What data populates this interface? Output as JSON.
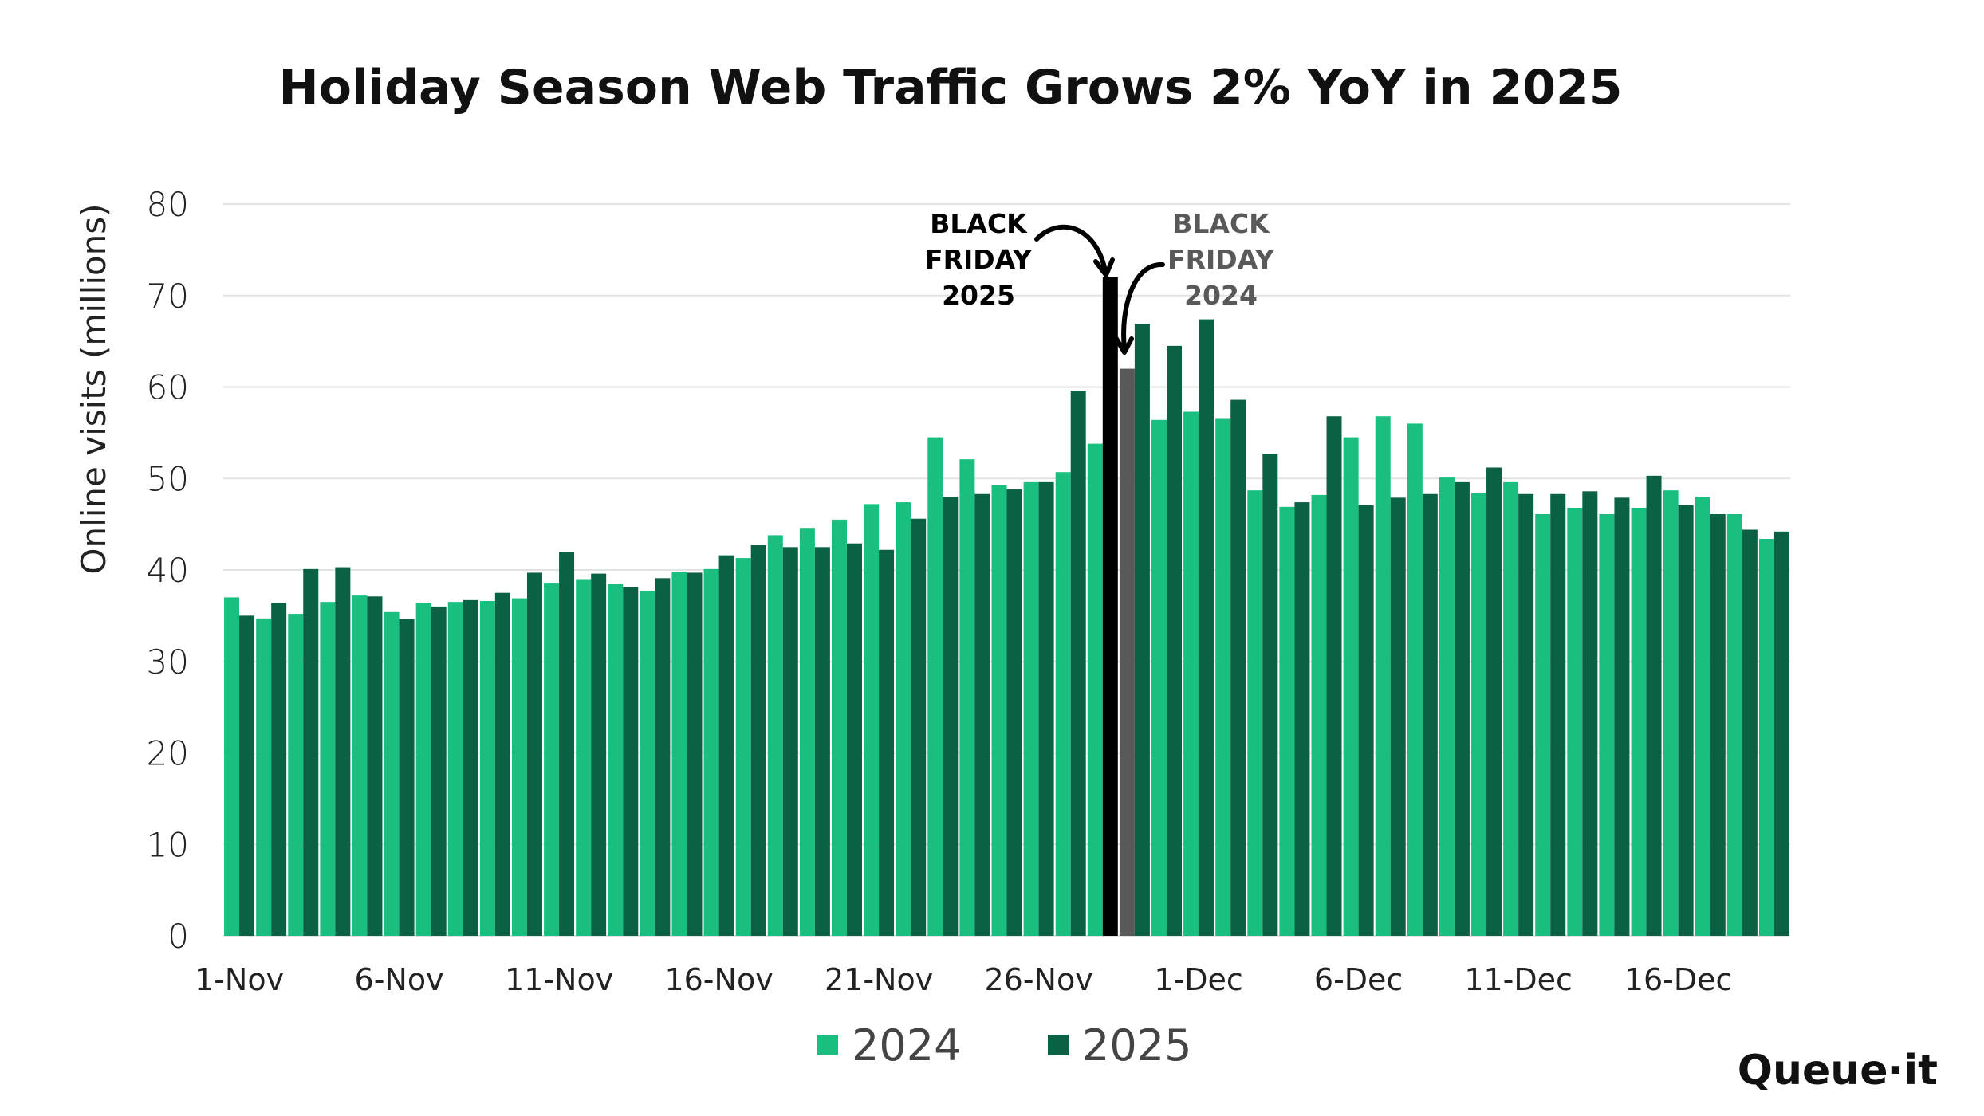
{
  "chart_data": {
    "type": "bar",
    "title": "Holiday Season Web Traffic Grows 2% YoY in 2025",
    "xlabel": "",
    "ylabel": "Online visits (millions)",
    "ylim": [
      0,
      80
    ],
    "yticks": [
      0,
      10,
      20,
      30,
      40,
      50,
      60,
      70,
      80
    ],
    "grid": true,
    "legend_position": "bottom",
    "categories": [
      "1-Nov",
      "2-Nov",
      "3-Nov",
      "4-Nov",
      "5-Nov",
      "6-Nov",
      "7-Nov",
      "8-Nov",
      "9-Nov",
      "10-Nov",
      "11-Nov",
      "12-Nov",
      "13-Nov",
      "14-Nov",
      "15-Nov",
      "16-Nov",
      "17-Nov",
      "18-Nov",
      "19-Nov",
      "20-Nov",
      "21-Nov",
      "22-Nov",
      "23-Nov",
      "24-Nov",
      "25-Nov",
      "26-Nov",
      "27-Nov",
      "28-Nov",
      "29-Nov",
      "30-Nov",
      "1-Dec",
      "2-Dec",
      "3-Dec",
      "4-Dec",
      "5-Dec",
      "6-Dec",
      "7-Dec",
      "8-Dec",
      "9-Dec",
      "10-Dec",
      "11-Dec",
      "12-Dec",
      "13-Dec",
      "14-Dec",
      "15-Dec",
      "16-Dec",
      "17-Dec",
      "18-Dec",
      "19-Dec"
    ],
    "x_tick_labels": [
      "1-Nov",
      "6-Nov",
      "11-Nov",
      "16-Nov",
      "21-Nov",
      "26-Nov",
      "1-Dec",
      "6-Dec",
      "11-Dec",
      "16-Dec"
    ],
    "series": [
      {
        "name": "2024",
        "color": "#1ABF7F",
        "values": [
          37,
          34.7,
          35.2,
          36.5,
          37.2,
          35.4,
          36.4,
          36.5,
          36.6,
          36.9,
          38.6,
          39,
          38.5,
          37.7,
          39.8,
          40.1,
          41.3,
          43.8,
          44.6,
          45.5,
          47.2,
          47.4,
          54.5,
          52.1,
          49.3,
          49.6,
          50.7,
          53.8,
          62,
          56.4,
          57.3,
          56.6,
          48.7,
          46.9,
          48.2,
          54.5,
          56.8,
          56,
          50.1,
          48.4,
          49.6,
          46.1,
          46.8,
          46.1,
          46.8,
          48.7,
          48,
          46.1,
          43.4
        ]
      },
      {
        "name": "2025",
        "color": "#0B6144",
        "values": [
          35,
          36.4,
          40.1,
          40.3,
          37.1,
          34.6,
          36,
          36.7,
          37.5,
          39.7,
          42,
          39.6,
          38.1,
          39.1,
          39.7,
          41.6,
          42.7,
          42.5,
          42.5,
          42.9,
          42.2,
          45.6,
          48,
          48.3,
          48.8,
          49.6,
          59.6,
          72,
          66.9,
          64.5,
          67.4,
          58.6,
          52.7,
          47.4,
          56.8,
          47.1,
          47.9,
          48.3,
          49.6,
          51.2,
          48.3,
          48.3,
          48.6,
          47.9,
          50.3,
          47.1,
          46.1,
          44.4,
          44.2
        ]
      }
    ],
    "highlights": [
      {
        "series": "2025",
        "category": "28-Nov",
        "color": "#000000"
      },
      {
        "series": "2024",
        "category": "29-Nov",
        "color": "#595959"
      }
    ],
    "annotations": [
      {
        "lines": [
          "BLACK",
          "FRIDAY",
          "2025"
        ],
        "color": "#000000"
      },
      {
        "lines": [
          "BLACK",
          "FRIDAY",
          "2024"
        ],
        "color": "#595959"
      }
    ]
  },
  "brand": {
    "logo_text": "Queue·it"
  }
}
